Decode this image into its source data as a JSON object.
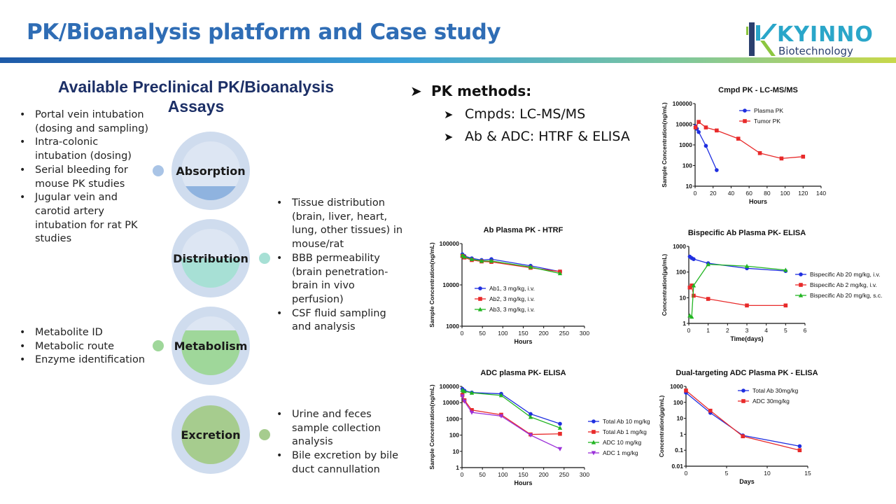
{
  "header": {
    "title": "PK/Bioanalysis platform and Case study",
    "logo_name": "KYINNO",
    "logo_sub": "Biotechnology",
    "logo_icon": "kyinno-logo-icon"
  },
  "assays": {
    "title_line1": "Available Preclinical PK/Bioanalysis",
    "title_line2": "Assays",
    "absorption_items": [
      "Portal vein intubation (dosing and sampling)",
      "Intra-colonic intubation (dosing)",
      "Serial bleeding for mouse PK studies",
      "Jugular vein and carotid artery intubation for rat PK studies"
    ],
    "distribution_items": [
      "Tissue distribution (brain, liver, heart, lung, other tissues) in mouse/rat",
      "BBB permeability (brain penetration- brain in vivo perfusion)",
      "CSF fluid sampling and analysis"
    ],
    "metabolism_items": [
      "Metabolite ID",
      "Metabolic route",
      "Enzyme identification"
    ],
    "excretion_items": [
      "Urine and feces sample collection analysis",
      "Bile excretion by bile duct cannullation"
    ],
    "stages": [
      {
        "label": "Absorption",
        "fill": "#8fb3df",
        "dot": "#a9c4e6"
      },
      {
        "label": "Distribution",
        "fill": "#a7e0d5",
        "dot": "#a7e0d5"
      },
      {
        "label": "Metabolism",
        "fill": "#9fd79a",
        "dot": "#9fd79a"
      },
      {
        "label": "Excretion",
        "fill": "#a6cc8e",
        "dot": "#a6cc8e"
      }
    ]
  },
  "pk_methods": {
    "heading": "PK methods:",
    "items": [
      "Cmpds: LC-MS/MS",
      "Ab & ADC: HTRF & ELISA"
    ]
  },
  "chart_data": [
    {
      "id": "cmpd",
      "type": "line",
      "title": "Cmpd PK - LC-MS/MS",
      "xlabel": "Hours",
      "ylabel": "Sample Concentration(ng/mL)",
      "xlim": [
        0,
        140
      ],
      "xticks": [
        "0",
        "20",
        "40",
        "60",
        "80",
        "100",
        "120",
        "140"
      ],
      "ylim": [
        10,
        100000
      ],
      "yscale": "log",
      "yticks": [
        "10",
        "100",
        "1000",
        "10000",
        "100000"
      ],
      "legend_position": "top-right",
      "series": [
        {
          "name": "Plasma PK",
          "color": "#1f2fe0",
          "marker": "circle",
          "x": [
            0.5,
            2,
            4,
            12,
            24
          ],
          "y": [
            8000,
            6000,
            4200,
            900,
            60
          ]
        },
        {
          "name": "Tumor PK",
          "color": "#e82a2a",
          "marker": "square",
          "x": [
            0.5,
            4,
            12,
            24,
            48,
            72,
            96,
            120
          ],
          "y": [
            7000,
            13000,
            7000,
            5000,
            2000,
            400,
            220,
            270
          ]
        }
      ]
    },
    {
      "id": "ab",
      "type": "line",
      "title": "Ab Plasma PK - HTRF",
      "xlabel": "Hours",
      "ylabel": "Sample Concentration(ng/mL)",
      "xlim": [
        0,
        300
      ],
      "xticks": [
        "0",
        "50",
        "100",
        "150",
        "200",
        "250",
        "300"
      ],
      "ylim": [
        1000,
        100000
      ],
      "yscale": "log",
      "yticks": [
        "1000",
        "10000",
        "100000"
      ],
      "legend_position": "bottom-left",
      "series": [
        {
          "name": "Ab1, 3 mg/kg, i.v.",
          "color": "#1f2fe0",
          "marker": "circle",
          "x": [
            1,
            6,
            24,
            48,
            72,
            168,
            240
          ],
          "y": [
            55000,
            50000,
            44000,
            40000,
            42000,
            29000,
            21000
          ]
        },
        {
          "name": "Ab2, 3 mg/kg, i.v.",
          "color": "#e82a2a",
          "marker": "square",
          "x": [
            1,
            6,
            24,
            48,
            72,
            168,
            240
          ],
          "y": [
            50000,
            46000,
            40000,
            37000,
            36000,
            26000,
            21000
          ]
        },
        {
          "name": "Ab3, 3 mg/kg, i.v.",
          "color": "#22b522",
          "marker": "triangle",
          "x": [
            1,
            6,
            24,
            48,
            72,
            168,
            240
          ],
          "y": [
            52000,
            48000,
            42000,
            38000,
            38000,
            27000,
            19000
          ]
        }
      ]
    },
    {
      "id": "bispecific",
      "type": "line",
      "title": "Bispecific Ab Plasma PK- ELISA",
      "xlabel": "Time(days)",
      "ylabel": "Concentration(µg/mL)",
      "xlim": [
        0,
        6
      ],
      "xticks": [
        "0",
        "1",
        "2",
        "3",
        "4",
        "5",
        "6"
      ],
      "ylim": [
        1,
        1000
      ],
      "yscale": "log",
      "yticks": [
        "1",
        "10",
        "100",
        "1000"
      ],
      "legend_position": "right",
      "series": [
        {
          "name": "Bispecific Ab 20 mg/kg, i.v.",
          "color": "#1f2fe0",
          "marker": "circle",
          "x": [
            0.05,
            0.15,
            0.25,
            1,
            3,
            5
          ],
          "y": [
            400,
            350,
            320,
            220,
            140,
            110
          ]
        },
        {
          "name": "Bispecific Ab 2 mg/kg, i.v.",
          "color": "#e82a2a",
          "marker": "square",
          "x": [
            0.05,
            0.15,
            0.25,
            1,
            3,
            5
          ],
          "y": [
            25,
            30,
            12,
            9,
            5,
            5
          ]
        },
        {
          "name": "Bispecific Ab 20 mg/kg, s.c.",
          "color": "#22b522",
          "marker": "triangle",
          "x": [
            0.05,
            0.15,
            0.25,
            1,
            3,
            5
          ],
          "y": [
            2,
            1.8,
            30,
            200,
            170,
            120
          ]
        }
      ]
    },
    {
      "id": "adc",
      "type": "line",
      "title": "ADC plasma PK- ELISA",
      "xlabel": "Hours",
      "ylabel": "Sample Concentration(ng/mL)",
      "xlim": [
        0,
        300
      ],
      "xticks": [
        "0",
        "50",
        "100",
        "150",
        "200",
        "250",
        "300"
      ],
      "ylim": [
        1,
        100000
      ],
      "yscale": "log",
      "yticks": [
        "1",
        "10",
        "100",
        "1000",
        "10000",
        "100000"
      ],
      "legend_position": "right",
      "series": [
        {
          "name": "Total Ab 10 mg/kg",
          "color": "#1f2fe0",
          "marker": "circle",
          "x": [
            1,
            6,
            24,
            96,
            168,
            240
          ],
          "y": [
            70000,
            55000,
            42000,
            35000,
            2000,
            500
          ]
        },
        {
          "name": "Total Ab 1 mg/kg",
          "color": "#e82a2a",
          "marker": "square",
          "x": [
            1,
            6,
            24,
            96,
            168,
            240
          ],
          "y": [
            30000,
            14000,
            3500,
            1800,
            110,
            120
          ]
        },
        {
          "name": "ADC 10 mg/kg",
          "color": "#22b522",
          "marker": "triangle",
          "x": [
            1,
            6,
            24,
            96,
            168,
            240
          ],
          "y": [
            60000,
            50000,
            40000,
            28000,
            1300,
            280
          ]
        },
        {
          "name": "ADC 1 mg/kg",
          "color": "#9b30d9",
          "marker": "triangle-down",
          "x": [
            1,
            6,
            24,
            96,
            168,
            240
          ],
          "y": [
            25000,
            12000,
            2500,
            1500,
            100,
            14
          ]
        }
      ]
    },
    {
      "id": "dual",
      "type": "line",
      "title": "Dual-targeting ADC Plasma PK - ELISA",
      "xlabel": "Days",
      "ylabel": "Concentration(µg/mL)",
      "xlim": [
        0,
        15
      ],
      "xticks": [
        "0",
        "5",
        "10",
        "15"
      ],
      "ylim": [
        0.01,
        1000
      ],
      "yscale": "log",
      "yticks": [
        "0.01",
        "0.1",
        "1",
        "10",
        "100",
        "1000"
      ],
      "legend_position": "top-right",
      "series": [
        {
          "name": "Total Ab 30mg/kg",
          "color": "#1f2fe0",
          "marker": "circle",
          "x": [
            0,
            3,
            7,
            14
          ],
          "y": [
            400,
            22,
            0.85,
            0.18
          ]
        },
        {
          "name": "ADC 30mg/kg",
          "color": "#e82a2a",
          "marker": "square",
          "x": [
            0,
            3,
            7,
            14
          ],
          "y": [
            550,
            30,
            0.75,
            0.1
          ]
        }
      ]
    }
  ]
}
